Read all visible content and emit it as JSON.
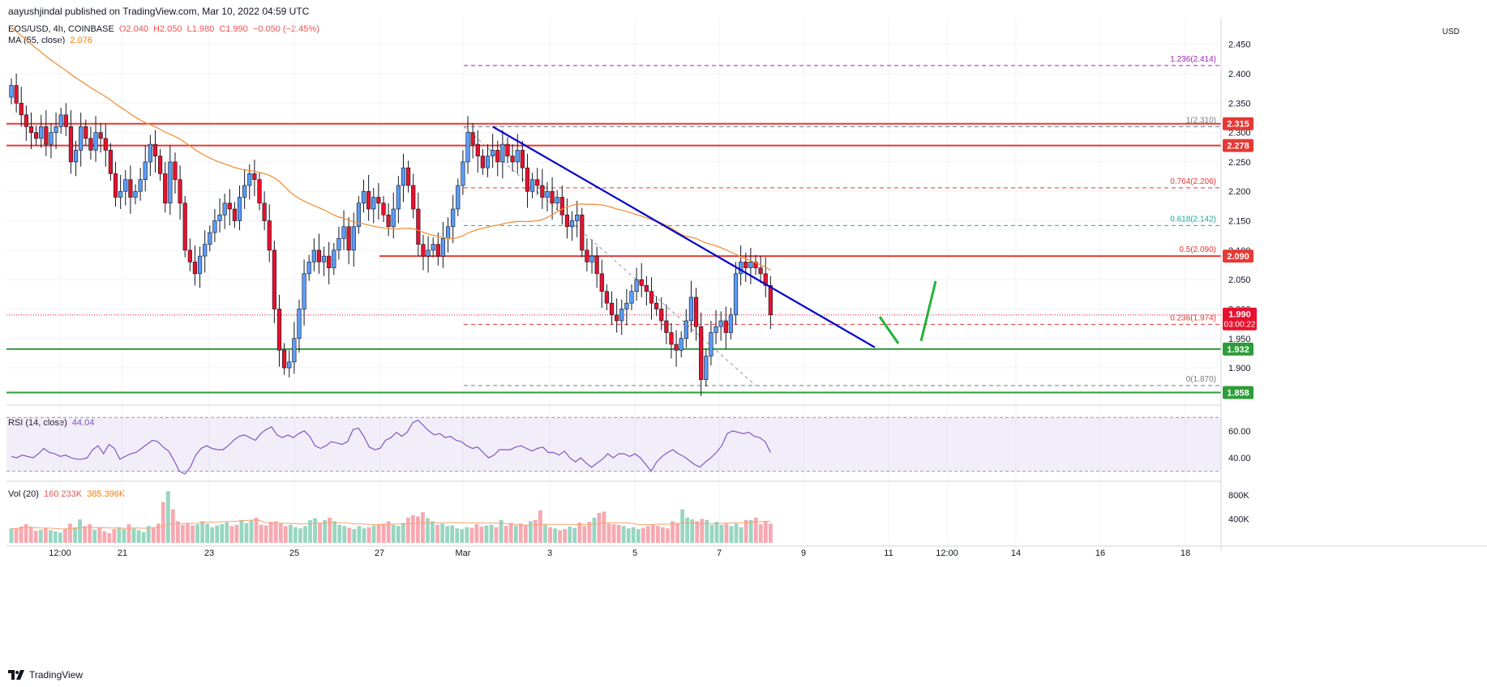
{
  "header": {
    "published": "aayushjindal published on TradingView.com, Mar 10, 2022 04:59 UTC"
  },
  "legend": {
    "symbol": "EOS/USD, 4h, COINBASE",
    "open": "O2.040",
    "high": "H2.050",
    "low": "L1.980",
    "close": "C1.990",
    "change": "−0.050 (−2.45%)",
    "ma_label": "MA (55, close)",
    "ma_value": "2.076",
    "rsi_label": "RSI (14, close)",
    "rsi_value": "44.04",
    "vol_label": "Vol (20)",
    "vol_value1": "160.233K",
    "vol_value2": "385.396K"
  },
  "currency": "USD",
  "footer": {
    "brand": "TradingView"
  },
  "colors": {
    "up": "#5b9cf6",
    "down": "#e8112d",
    "ma": "#f0923b",
    "trend": "#0000cc",
    "resistance": "#e53935",
    "support": "#2e9c3a",
    "rsi": "#7e57c2",
    "fib": "#9c27b0",
    "green_arrow": "#22b339"
  },
  "chart_data": {
    "type": "candlestick",
    "symbol": "EOS/USD",
    "interval": "4h",
    "price_range": [
      1.845,
      2.495
    ],
    "price_ticks": [
      "2.450",
      "2.400",
      "2.350",
      "2.300",
      "2.250",
      "2.200",
      "2.150",
      "2.100",
      "2.050",
      "2.000",
      "1.950",
      "1.900"
    ],
    "x_labels": [
      "12:00",
      "21",
      "23",
      "25",
      "27",
      "Mar",
      "3",
      "5",
      "7",
      "9",
      "11",
      "12:00",
      "14",
      "16",
      "18"
    ],
    "price_labels": [
      {
        "value": "2.315",
        "kind": "resistance"
      },
      {
        "value": "2.278",
        "kind": "resistance"
      },
      {
        "value": "2.090",
        "kind": "resistance"
      },
      {
        "value": "1.990",
        "kind": "last"
      },
      {
        "value": "03:00:22",
        "kind": "countdown"
      },
      {
        "value": "1.932",
        "kind": "support"
      },
      {
        "value": "1.858",
        "kind": "support"
      }
    ],
    "horizontal_levels": {
      "resistance": [
        2.315,
        2.278,
        2.09
      ],
      "support": [
        1.932,
        1.858
      ],
      "last": 1.99
    },
    "fib_levels": [
      {
        "label": "1.236(2.414)",
        "price": 2.414,
        "color": "#9c27b0"
      },
      {
        "label": "1(2.310)",
        "price": 2.31,
        "color": "#787b86"
      },
      {
        "label": "0.764(2.206)",
        "price": 2.206,
        "color": "#e53935"
      },
      {
        "label": "0.618(2.142)",
        "price": 2.142,
        "color": "#26a69a"
      },
      {
        "label": "0.5(2.090)",
        "price": 2.09,
        "color": "#e53935"
      },
      {
        "label": "0.236(1.974)",
        "price": 1.974,
        "color": "#e53935"
      },
      {
        "label": "0(1.870)",
        "price": 1.87,
        "color": "#787b86"
      }
    ],
    "trendline": {
      "from": {
        "bar": 113,
        "price": 2.31
      },
      "to": {
        "bar": 191,
        "price": 1.935
      }
    },
    "candles_close": [
      2.38,
      2.35,
      2.33,
      2.31,
      2.3,
      2.29,
      2.31,
      2.28,
      2.3,
      2.31,
      2.33,
      2.31,
      2.25,
      2.27,
      2.31,
      2.29,
      2.27,
      2.3,
      2.29,
      2.27,
      2.23,
      2.19,
      2.2,
      2.22,
      2.19,
      2.2,
      2.22,
      2.25,
      2.28,
      2.26,
      2.23,
      2.18,
      2.25,
      2.22,
      2.18,
      2.1,
      2.08,
      2.06,
      2.09,
      2.11,
      2.13,
      2.15,
      2.16,
      2.18,
      2.17,
      2.15,
      2.19,
      2.21,
      2.23,
      2.22,
      2.18,
      2.15,
      2.1,
      2.0,
      1.93,
      1.9,
      1.91,
      1.95,
      2.0,
      2.06,
      2.08,
      2.1,
      2.08,
      2.09,
      2.07,
      2.1,
      2.12,
      2.14,
      2.1,
      2.14,
      2.18,
      2.2,
      2.17,
      2.19,
      2.18,
      2.16,
      2.14,
      2.17,
      2.21,
      2.24,
      2.21,
      2.17,
      2.11,
      2.09,
      2.1,
      2.11,
      2.09,
      2.12,
      2.14,
      2.17,
      2.21,
      2.25,
      2.3,
      2.28,
      2.26,
      2.24,
      2.26,
      2.27,
      2.25,
      2.28,
      2.26,
      2.25,
      2.27,
      2.24,
      2.2,
      2.22,
      2.21,
      2.19,
      2.2,
      2.18,
      2.19,
      2.16,
      2.14,
      2.15,
      2.16,
      2.1,
      2.08,
      2.09,
      2.06,
      2.03,
      2.01,
      1.99,
      1.98,
      2.0,
      2.01,
      2.03,
      2.05,
      2.04,
      2.03,
      2.01,
      2.0,
      1.98,
      1.96,
      1.94,
      1.93,
      1.95,
      1.98,
      2.02,
      1.97,
      1.88,
      1.92,
      1.96,
      1.97,
      1.98,
      1.96,
      1.99,
      2.06,
      2.08,
      2.07,
      2.08,
      2.07,
      2.06,
      2.04,
      1.99
    ],
    "ma_period": 55,
    "rsi": {
      "ticks": [
        "60.00",
        "40.00"
      ],
      "range": [
        25,
        75
      ],
      "values": [
        41,
        40,
        42,
        41,
        40,
        43,
        47,
        44,
        43,
        41,
        42,
        40,
        39,
        39,
        40,
        46,
        49,
        43,
        50,
        47,
        39,
        41,
        43,
        44,
        47,
        50,
        53,
        52,
        48,
        45,
        38,
        30,
        28,
        33,
        42,
        47,
        49,
        47,
        46,
        46,
        49,
        53,
        56,
        57,
        55,
        53,
        58,
        61,
        63,
        57,
        55,
        57,
        55,
        58,
        60,
        56,
        49,
        47,
        49,
        52,
        51,
        50,
        52,
        61,
        62,
        56,
        48,
        46,
        47,
        53,
        55,
        59,
        56,
        59,
        66,
        68,
        64,
        60,
        57,
        58,
        55,
        56,
        53,
        52,
        49,
        47,
        48,
        44,
        40,
        42,
        46,
        46,
        46,
        48,
        49,
        47,
        45,
        47,
        48,
        44,
        44,
        42,
        45,
        40,
        37,
        40,
        36,
        33,
        36,
        39,
        43,
        40,
        43,
        43,
        41,
        43,
        40,
        35,
        30,
        37,
        41,
        44,
        46,
        43,
        41,
        38,
        35,
        33,
        37,
        40,
        44,
        49,
        58,
        60,
        59,
        58,
        59,
        56,
        55,
        52,
        44
      ]
    },
    "volume": {
      "ticks": [
        "800K",
        "400K"
      ],
      "range": [
        0,
        1000
      ],
      "values": [
        240,
        230,
        270,
        310,
        260,
        200,
        220,
        250,
        210,
        190,
        170,
        230,
        320,
        260,
        390,
        280,
        310,
        220,
        260,
        190,
        160,
        230,
        260,
        230,
        310,
        240,
        210,
        180,
        280,
        260,
        320,
        680,
        860,
        560,
        360,
        300,
        330,
        290,
        310,
        360,
        320,
        260,
        290,
        310,
        340,
        280,
        300,
        380,
        330,
        380,
        420,
        300,
        290,
        350,
        360,
        320,
        280,
        300,
        260,
        240,
        280,
        380,
        410,
        340,
        380,
        420,
        360,
        300,
        280,
        250,
        230,
        280,
        240,
        260,
        290,
        310,
        320,
        360,
        300,
        280,
        330,
        420,
        460,
        440,
        510,
        410,
        360,
        300,
        320,
        280,
        290,
        240,
        230,
        260,
        250,
        310,
        270,
        290,
        300,
        260,
        380,
        280,
        330,
        290,
        320,
        300,
        360,
        380,
        540,
        300,
        260,
        240,
        210,
        230,
        270,
        250,
        340,
        280,
        350,
        420,
        500,
        520,
        320,
        310,
        300,
        280,
        240,
        260,
        230,
        250,
        280,
        300,
        280,
        260,
        240,
        360,
        330,
        560,
        420,
        390,
        360,
        400,
        380,
        300,
        350,
        300,
        320,
        280,
        320,
        260,
        380,
        380,
        420,
        310,
        360,
        320
      ]
    }
  }
}
